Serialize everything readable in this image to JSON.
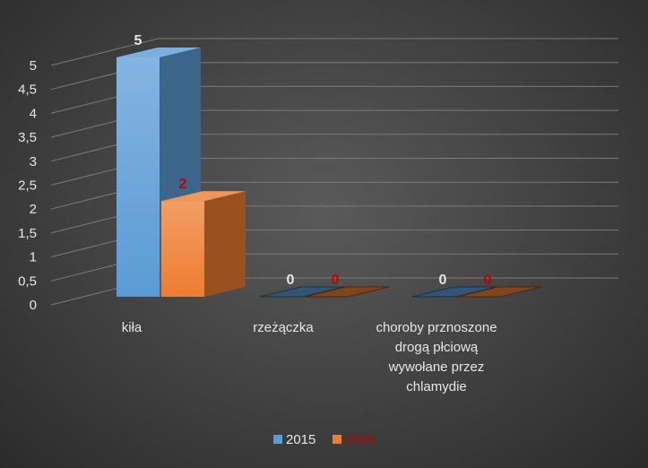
{
  "chart_data": {
    "type": "bar",
    "categories": [
      "kiła",
      "rzeżączka",
      "choroby przenoszone drogą płciową wywołane przez chlamydie"
    ],
    "category_lines": [
      [
        "kiła"
      ],
      [
        "rzeżączka"
      ],
      [
        "choroby prznoszone",
        "drogą płciową",
        "wywołane przez",
        "chlamydie"
      ]
    ],
    "series": [
      {
        "name": "2015",
        "values": [
          5,
          0,
          0
        ],
        "color": "#5b9bd5",
        "label_color": "#e6e6e6"
      },
      {
        "name": "2016",
        "values": [
          2,
          0,
          0
        ],
        "color": "#ed7d31",
        "label_color": "#c00000"
      }
    ],
    "y_ticks": [
      "0",
      "0,5",
      "1",
      "1,5",
      "2",
      "2,5",
      "3",
      "3,5",
      "4",
      "4,5",
      "5"
    ],
    "ylim": [
      0,
      5
    ],
    "grid": true,
    "legend_position": "bottom",
    "title": "",
    "xlabel": "",
    "ylabel": ""
  }
}
